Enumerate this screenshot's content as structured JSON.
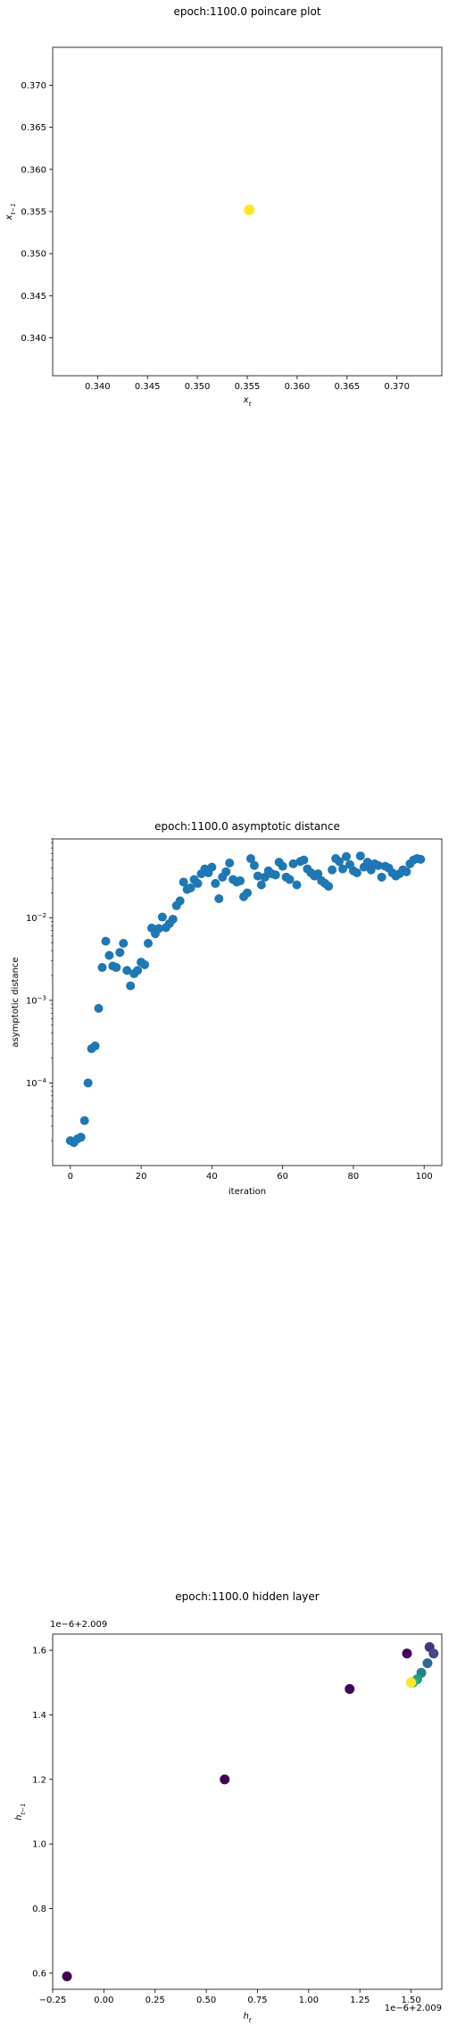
{
  "chart_data": [
    {
      "type": "scatter",
      "title": "epoch:1100.0 poincare plot",
      "xlabel": "x_t",
      "ylabel": "x_{t-1}",
      "xlim": [
        0.3355,
        0.3745
      ],
      "ylim": [
        0.3355,
        0.3745
      ],
      "xticks": [
        "0.340",
        "0.345",
        "0.350",
        "0.355",
        "0.360",
        "0.365",
        "0.370"
      ],
      "yticks": [
        "0.340",
        "0.345",
        "0.350",
        "0.355",
        "0.360",
        "0.365",
        "0.370"
      ],
      "point_color": "#fde725",
      "points": [
        {
          "x": 0.3552,
          "y": 0.3552
        }
      ]
    },
    {
      "type": "scatter",
      "title": "epoch:1100.0 asymptotic distance",
      "xlabel": "iteration",
      "ylabel": "asymptotic distance",
      "yscale": "log",
      "xlim": [
        -5,
        105
      ],
      "ylim": [
        1e-05,
        0.09
      ],
      "xticks": [
        "0",
        "20",
        "40",
        "60",
        "80",
        "100"
      ],
      "yticks": [
        "10^-4",
        "10^-3",
        "10^-2"
      ],
      "point_color": "#1f77b4",
      "values": [
        2e-05,
        1.9e-05,
        2.1e-05,
        2.2e-05,
        3.5e-05,
        0.0001,
        0.00026,
        0.00028,
        0.0008,
        0.0025,
        0.0052,
        0.0035,
        0.0026,
        0.0025,
        0.0038,
        0.0049,
        0.0023,
        0.0015,
        0.0021,
        0.0023,
        0.0029,
        0.0027,
        0.0049,
        0.0075,
        0.0064,
        0.0074,
        0.0102,
        0.0076,
        0.0085,
        0.0096,
        0.014,
        0.016,
        0.027,
        0.022,
        0.023,
        0.029,
        0.026,
        0.034,
        0.039,
        0.035,
        0.041,
        0.026,
        0.017,
        0.031,
        0.036,
        0.046,
        0.029,
        0.027,
        0.028,
        0.018,
        0.02,
        0.052,
        0.043,
        0.032,
        0.025,
        0.031,
        0.037,
        0.034,
        0.033,
        0.047,
        0.042,
        0.031,
        0.029,
        0.045,
        0.025,
        0.048,
        0.05,
        0.039,
        0.035,
        0.032,
        0.034,
        0.028,
        0.026,
        0.024,
        0.038,
        0.052,
        0.048,
        0.039,
        0.055,
        0.044,
        0.037,
        0.035,
        0.056,
        0.041,
        0.047,
        0.038,
        0.045,
        0.043,
        0.031,
        0.042,
        0.04,
        0.035,
        0.032,
        0.034,
        0.038,
        0.036,
        0.045,
        0.05,
        0.052,
        0.051
      ]
    },
    {
      "type": "scatter",
      "title": "epoch:1100.0 hidden layer",
      "xlabel": "h_t",
      "ylabel": "h_{t-1}",
      "x_offset_text": "1e−6+2.009",
      "y_offset_text": "1e−6+2.009",
      "xlim": [
        -0.25,
        1.65
      ],
      "ylim": [
        0.55,
        1.65
      ],
      "xticks": [
        "−0.25",
        "0.00",
        "0.25",
        "0.50",
        "0.75",
        "1.00",
        "1.25",
        "1.50"
      ],
      "yticks": [
        "0.6",
        "0.8",
        "1.0",
        "1.2",
        "1.4",
        "1.6"
      ],
      "points": [
        {
          "x": -0.18,
          "y": 0.59,
          "color": "#440154"
        },
        {
          "x": 0.59,
          "y": 1.2,
          "color": "#440154"
        },
        {
          "x": 1.2,
          "y": 1.48,
          "color": "#440154"
        },
        {
          "x": 1.48,
          "y": 1.59,
          "color": "#440154"
        },
        {
          "x": 1.59,
          "y": 1.61,
          "color": "#46337e"
        },
        {
          "x": 1.61,
          "y": 1.59,
          "color": "#3e4a89"
        },
        {
          "x": 1.58,
          "y": 1.56,
          "color": "#31688e"
        },
        {
          "x": 1.55,
          "y": 1.53,
          "color": "#26828e"
        },
        {
          "x": 1.53,
          "y": 1.51,
          "color": "#1f9e89"
        },
        {
          "x": 1.51,
          "y": 1.5,
          "color": "#35b779"
        },
        {
          "x": 1.5,
          "y": 1.5,
          "color": "#6ece58"
        },
        {
          "x": 1.5,
          "y": 1.5,
          "color": "#b5de2b"
        },
        {
          "x": 1.5,
          "y": 1.5,
          "color": "#fde725"
        }
      ]
    }
  ]
}
